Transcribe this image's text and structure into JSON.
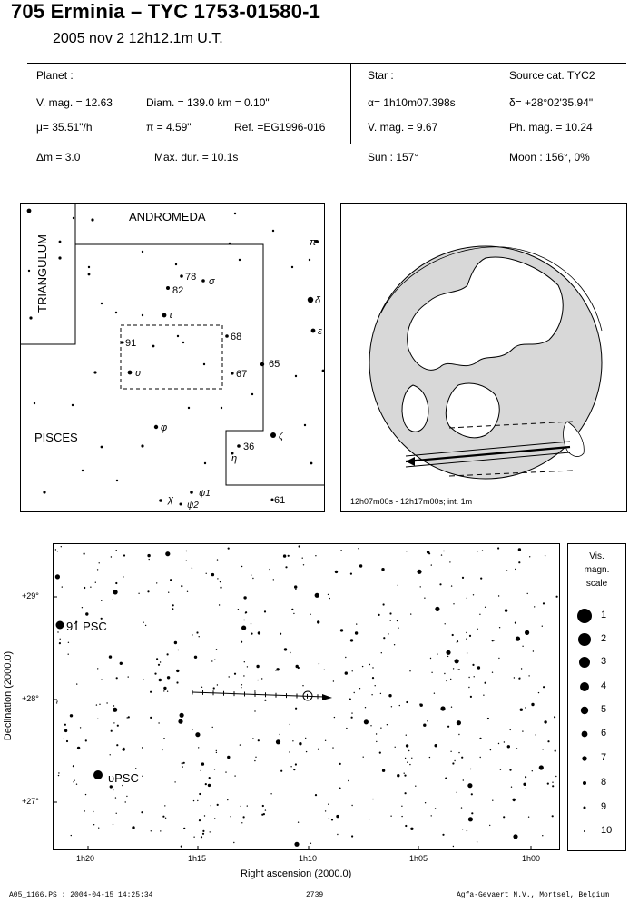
{
  "header": {
    "title": "705 Erminia  –  TYC 1753-01580-1",
    "date": "2005 nov  2  12h12.1m U.T."
  },
  "planet": {
    "heading": "Planet :",
    "vmag": "V. mag. = 12.63",
    "diam": "Diam. = 139.0 km = 0.10\"",
    "mu": "μ=  35.51\"/h",
    "pi": "π =  4.59\"",
    "ref": "Ref. =EG1996-016"
  },
  "star": {
    "heading": "Star :",
    "source": "Source cat.  TYC2",
    "alpha": "α=  1h10m07.398s",
    "delta": "δ= +28°02'35.94\"",
    "vmag": "V. mag. =  9.67",
    "phmag": "Ph. mag. = 10.24"
  },
  "event": {
    "dm": "Δm  = 3.0",
    "maxdur": "Max. dur. = 10.1s",
    "sun": "Sun : 157°",
    "moon": "Moon : 156°,   0%"
  },
  "finder": {
    "constellations": [
      "ANDROMEDA",
      "TRIANGULUM",
      "PISCES"
    ],
    "star_labels": [
      "78",
      "σ",
      "82",
      "τ",
      "91",
      "υ",
      "68",
      "67",
      "65",
      "φ",
      "ζ",
      "36",
      "η",
      "χ",
      "ψ1",
      "ψ2",
      "61",
      "π",
      "δ",
      "ε"
    ]
  },
  "globe": {
    "caption": "12h07m00s - 12h17m00s; int.  1m"
  },
  "chart": {
    "ylabel": "Declination (2000.0)",
    "xlabel": "Right ascension (2000.0)",
    "yticks": [
      "+29°",
      "+28°",
      "+27°"
    ],
    "xticks": [
      "1h20",
      "1h15",
      "1h10",
      "1h05",
      "1h00"
    ],
    "star_labels": [
      "91 PSC",
      "υPSC"
    ]
  },
  "scale": {
    "title1": "Vis.",
    "title2": "magn.",
    "title3": "scale",
    "mags": [
      "1",
      "2",
      "3",
      "4",
      "5",
      "6",
      "7",
      "8",
      "9",
      "10"
    ]
  },
  "footer": {
    "file": "A05_1166.PS : 2004-04-15 14:25:34",
    "page": "2739",
    "org": "Agfa-Gevaert N.V., Mortsel, Belgium"
  }
}
